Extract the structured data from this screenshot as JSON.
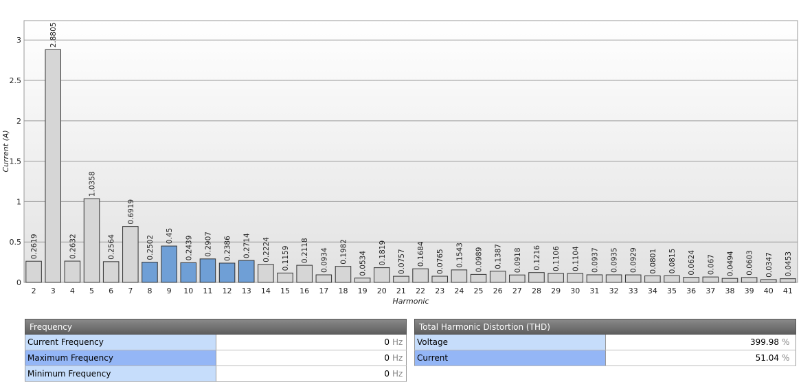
{
  "chart_data": {
    "type": "bar",
    "y_label": "Current (A)",
    "x_label": "Harmonic",
    "categories": [
      "2",
      "3",
      "4",
      "5",
      "6",
      "7",
      "8",
      "9",
      "10",
      "11",
      "12",
      "13",
      "14",
      "15",
      "16",
      "17",
      "18",
      "19",
      "20",
      "21",
      "22",
      "23",
      "24",
      "25",
      "26",
      "27",
      "28",
      "29",
      "30",
      "31",
      "32",
      "33",
      "34",
      "35",
      "36",
      "37",
      "38",
      "39",
      "40",
      "41"
    ],
    "values": [
      0.2619,
      2.8805,
      0.2632,
      1.0358,
      0.2564,
      0.6919,
      0.2502,
      0.45,
      0.2439,
      0.2907,
      0.2386,
      0.2714,
      0.2224,
      0.1159,
      0.2118,
      0.0934,
      0.1982,
      0.0534,
      0.1819,
      0.0757,
      0.1684,
      0.0765,
      0.1543,
      0.0989,
      0.1387,
      0.0918,
      0.1216,
      0.1106,
      0.1104,
      0.0937,
      0.0935,
      0.0929,
      0.0801,
      0.0815,
      0.0624,
      0.067,
      0.0494,
      0.0603,
      0.0347,
      0.0453
    ],
    "colors": [
      "#d6d6d6",
      "#d6d6d6",
      "#d6d6d6",
      "#d6d6d6",
      "#d6d6d6",
      "#d6d6d6",
      "#6f9fd6",
      "#6f9fd6",
      "#6f9fd6",
      "#6f9fd6",
      "#6f9fd6",
      "#6f9fd6",
      "#d6d6d6",
      "#d6d6d6",
      "#d6d6d6",
      "#d6d6d6",
      "#d6d6d6",
      "#d6d6d6",
      "#d6d6d6",
      "#d6d6d6",
      "#d6d6d6",
      "#d6d6d6",
      "#d6d6d6",
      "#d6d6d6",
      "#d6d6d6",
      "#d6d6d6",
      "#d6d6d6",
      "#d6d6d6",
      "#d6d6d6",
      "#d6d6d6",
      "#d6d6d6",
      "#d6d6d6",
      "#d6d6d6",
      "#d6d6d6",
      "#d6d6d6",
      "#d6d6d6",
      "#d6d6d6",
      "#d6d6d6",
      "#d6d6d6",
      "#d6d6d6"
    ],
    "ylim": [
      0,
      3.24
    ],
    "yticks": [
      0,
      0.5,
      1,
      1.5,
      2,
      2.5,
      3
    ],
    "grid": true
  },
  "frequency": {
    "title": "Frequency",
    "rows": [
      [
        "Current Frequency",
        "0",
        "Hz"
      ],
      [
        "Maximum Frequency",
        "0",
        "Hz"
      ],
      [
        "Minimum Frequency",
        "0",
        "Hz"
      ]
    ]
  },
  "thd": {
    "title": "Total Harmonic Distortion (THD)",
    "rows": [
      [
        "Voltage",
        "399.98",
        "%"
      ],
      [
        "Current",
        "51.04",
        "%"
      ]
    ]
  }
}
